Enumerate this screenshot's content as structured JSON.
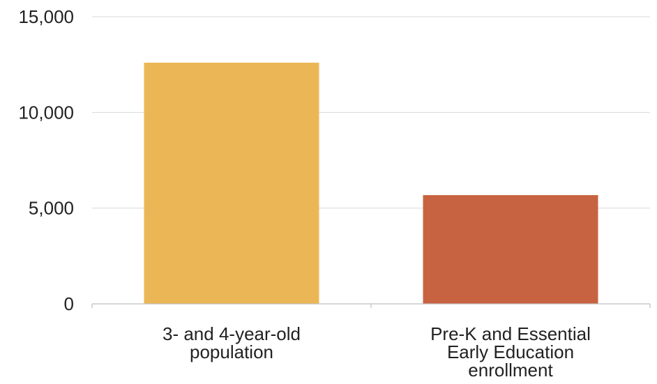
{
  "chart_data": {
    "type": "bar",
    "categories": [
      [
        "3- and 4-year-old",
        "population"
      ],
      [
        "Pre-K and Essential",
        "Early Education",
        "enrollment"
      ]
    ],
    "values": [
      12600,
      5680
    ],
    "bar_colors": [
      "#ebb756",
      "#c76341"
    ],
    "ylim": [
      0,
      15000
    ],
    "yticks": [
      0,
      5000,
      10000,
      15000
    ],
    "ytick_labels": [
      "0",
      "5,000",
      "10,000",
      "15,000"
    ],
    "grid": true,
    "legend": "none"
  }
}
